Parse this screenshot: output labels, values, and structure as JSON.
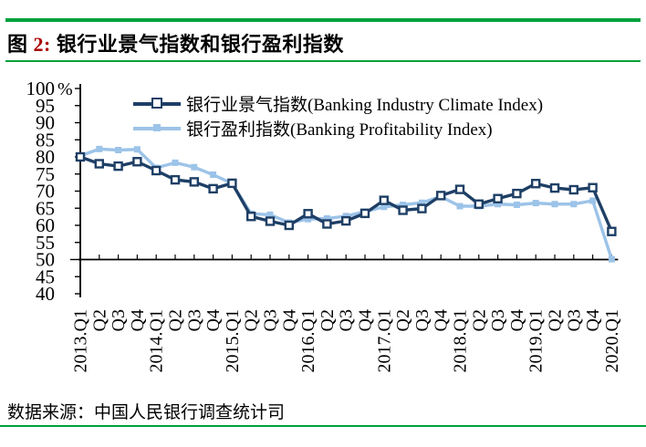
{
  "header": {
    "title_prefix": "图",
    "title_number": "2:",
    "title_text": "银行业景气指数和银行盈利指数"
  },
  "source": {
    "text": "数据来源：中国人民银行调查统计司"
  },
  "colors": {
    "climate": "#1E3F66",
    "profitability": "#9CC3E8",
    "rule_green": "#00A13D",
    "title_number_red": "#AB0000",
    "axis": "#000000"
  },
  "chart_data": {
    "type": "line",
    "unit": "%",
    "title": "银行业景气指数和银行盈利指数",
    "categories": [
      "2013.Q1",
      "Q2",
      "Q3",
      "Q4",
      "2014.Q1",
      "Q2",
      "Q3",
      "Q4",
      "2015.Q1",
      "Q2",
      "Q3",
      "Q4",
      "2016.Q1",
      "Q2",
      "Q3",
      "Q4",
      "2017.Q1",
      "Q2",
      "Q3",
      "Q4",
      "2018.Q1",
      "Q2",
      "Q3",
      "Q4",
      "2019.Q1",
      "Q2",
      "Q3",
      "Q4",
      "2020.Q1"
    ],
    "series": [
      {
        "name": "银行业景气指数(Banking Industry Climate Index)",
        "color_key": "climate",
        "marker": "open-square",
        "values": [
          80.0,
          78.0,
          77.3,
          78.6,
          76.0,
          73.3,
          72.7,
          70.7,
          72.3,
          62.6,
          61.2,
          60.0,
          63.4,
          60.4,
          61.3,
          63.5,
          67.3,
          64.4,
          64.9,
          68.7,
          70.5,
          66.2,
          67.8,
          69.3,
          72.2,
          70.9,
          70.4,
          71.0,
          58.2
        ]
      },
      {
        "name": "银行盈利指数(Banking Profitability Index)",
        "color_key": "profitability",
        "marker": "filled-square",
        "values": [
          80.3,
          82.3,
          82.0,
          82.2,
          76.8,
          78.3,
          77.0,
          74.8,
          72.2,
          63.4,
          63.1,
          60.8,
          61.8,
          62.0,
          62.7,
          64.0,
          65.4,
          66.0,
          66.6,
          68.4,
          65.6,
          65.6,
          66.2,
          66.0,
          66.5,
          66.2,
          66.2,
          67.2,
          50.1
        ]
      }
    ],
    "ylim": [
      40,
      100
    ],
    "ytick_step": 5,
    "x_axis_cross_at": 50,
    "grid": false,
    "legend_position": "top-inside"
  }
}
